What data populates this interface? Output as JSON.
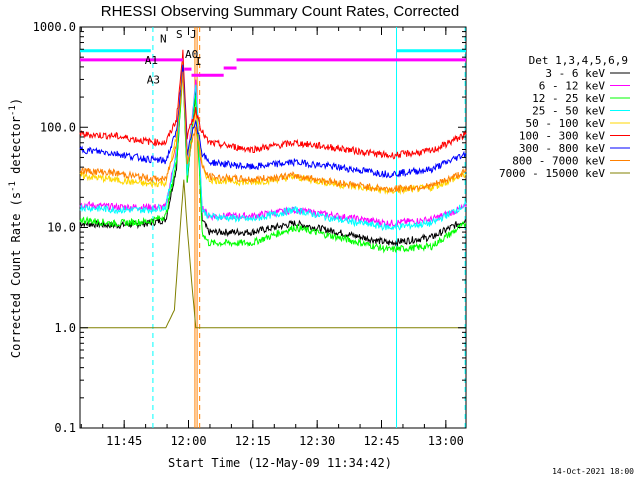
{
  "chart_data": {
    "type": "line",
    "title": "RHESSI Observing Summary Count Rates, Corrected",
    "xlabel": "Start Time (12-May-09 11:34:42)",
    "ylabel_parts": {
      "pre": "Corrected Count Rate (s",
      "sup1": "-1",
      "mid": " detector",
      "sup2": "-1",
      "post": ")"
    },
    "y_scale": "log",
    "ylim": [
      0.1,
      1000.0
    ],
    "xlim_minutes_after_start": [
      0,
      90
    ],
    "x_ticks": [
      {
        "label": "11:45",
        "value": 10.3
      },
      {
        "label": "12:00",
        "value": 25.3
      },
      {
        "label": "12:15",
        "value": 40.3
      },
      {
        "label": "12:30",
        "value": 55.3
      },
      {
        "label": "12:45",
        "value": 70.3
      },
      {
        "label": "13:00",
        "value": 85.3
      }
    ],
    "y_ticks": [
      {
        "label": "1000.0",
        "value": 1000
      },
      {
        "label": "100.0",
        "value": 100
      },
      {
        "label": "10.0",
        "value": 10
      },
      {
        "label": "1.0",
        "value": 1
      },
      {
        "label": "0.1",
        "value": 0.1
      }
    ],
    "legend_header": "Det 1,3,4,5,6,9",
    "legend_placement": "right",
    "grid": false,
    "series": [
      {
        "name": "3 - 6 keV",
        "color": "#000000",
        "points": [
          [
            0,
            11
          ],
          [
            8,
            10.5
          ],
          [
            16,
            11
          ],
          [
            20,
            12
          ],
          [
            22.5,
            40
          ],
          [
            24,
            400
          ],
          [
            25,
            30
          ],
          [
            27,
            250
          ],
          [
            28.5,
            12
          ],
          [
            30,
            9
          ],
          [
            40,
            9
          ],
          [
            50,
            11
          ],
          [
            60,
            9
          ],
          [
            72,
            7
          ],
          [
            82,
            8
          ],
          [
            90,
            12
          ]
        ]
      },
      {
        "name": "6 - 12 keV",
        "color": "#ff00ff",
        "points": [
          [
            0,
            17
          ],
          [
            8,
            16
          ],
          [
            16,
            16
          ],
          [
            20,
            16
          ],
          [
            22.5,
            60
          ],
          [
            24,
            500
          ],
          [
            25,
            40
          ],
          [
            27,
            300
          ],
          [
            28.5,
            16
          ],
          [
            30,
            13
          ],
          [
            40,
            13
          ],
          [
            50,
            15
          ],
          [
            60,
            13
          ],
          [
            72,
            11
          ],
          [
            82,
            12
          ],
          [
            90,
            16
          ]
        ]
      },
      {
        "name": "12 - 25 keV",
        "color": "#00ff00",
        "points": [
          [
            0,
            12
          ],
          [
            8,
            11
          ],
          [
            16,
            11.5
          ],
          [
            20,
            13
          ],
          [
            22.5,
            45
          ],
          [
            24,
            350
          ],
          [
            25,
            30
          ],
          [
            27,
            200
          ],
          [
            28.5,
            9
          ],
          [
            30,
            7
          ],
          [
            40,
            7
          ],
          [
            50,
            10
          ],
          [
            60,
            8
          ],
          [
            72,
            6
          ],
          [
            82,
            6.5
          ],
          [
            90,
            11
          ]
        ]
      },
      {
        "name": "25 - 50 keV",
        "color": "#00ffff",
        "points": [
          [
            0,
            16
          ],
          [
            8,
            15
          ],
          [
            16,
            15
          ],
          [
            20,
            16
          ],
          [
            22.5,
            55
          ],
          [
            24,
            450
          ],
          [
            25,
            35
          ],
          [
            27,
            280
          ],
          [
            28.5,
            15
          ],
          [
            30,
            13
          ],
          [
            40,
            12
          ],
          [
            50,
            15
          ],
          [
            60,
            12
          ],
          [
            72,
            10
          ],
          [
            82,
            11
          ],
          [
            90,
            17
          ]
        ]
      },
      {
        "name": "50 - 100 keV",
        "color": "#ffd700",
        "points": [
          [
            0,
            33
          ],
          [
            8,
            30
          ],
          [
            16,
            27
          ],
          [
            20,
            28
          ],
          [
            22.5,
            80
          ],
          [
            24,
            500
          ],
          [
            25,
            50
          ],
          [
            27,
            150
          ],
          [
            28.5,
            40
          ],
          [
            30,
            30
          ],
          [
            40,
            28
          ],
          [
            50,
            32
          ],
          [
            60,
            27
          ],
          [
            72,
            23
          ],
          [
            82,
            25
          ],
          [
            90,
            34
          ]
        ]
      },
      {
        "name": "100 - 300 keV",
        "color": "#ff0000",
        "points": [
          [
            0,
            85
          ],
          [
            8,
            82
          ],
          [
            16,
            72
          ],
          [
            20,
            70
          ],
          [
            22.5,
            120
          ],
          [
            24,
            550
          ],
          [
            25,
            80
          ],
          [
            27,
            150
          ],
          [
            28.5,
            90
          ],
          [
            30,
            70
          ],
          [
            40,
            60
          ],
          [
            50,
            70
          ],
          [
            60,
            62
          ],
          [
            72,
            52
          ],
          [
            82,
            58
          ],
          [
            90,
            85
          ]
        ]
      },
      {
        "name": "300 - 800 keV",
        "color": "#0000ff",
        "points": [
          [
            0,
            60
          ],
          [
            8,
            55
          ],
          [
            16,
            48
          ],
          [
            20,
            46
          ],
          [
            22.5,
            90
          ],
          [
            24,
            400
          ],
          [
            25,
            55
          ],
          [
            27,
            120
          ],
          [
            28.5,
            55
          ],
          [
            30,
            45
          ],
          [
            40,
            40
          ],
          [
            50,
            45
          ],
          [
            60,
            40
          ],
          [
            72,
            34
          ],
          [
            82,
            38
          ],
          [
            90,
            55
          ]
        ]
      },
      {
        "name": "800 - 7000 keV",
        "color": "#ff8000",
        "points": [
          [
            0,
            37
          ],
          [
            8,
            35
          ],
          [
            16,
            31
          ],
          [
            20,
            30
          ],
          [
            22.5,
            70
          ],
          [
            24,
            350
          ],
          [
            25,
            45
          ],
          [
            27,
            100
          ],
          [
            28.5,
            40
          ],
          [
            30,
            32
          ],
          [
            40,
            30
          ],
          [
            50,
            33
          ],
          [
            60,
            28
          ],
          [
            72,
            24
          ],
          [
            82,
            26
          ],
          [
            90,
            36
          ]
        ]
      },
      {
        "name": "7000 - 15000 keV",
        "color": "#808000",
        "points": [
          [
            0,
            1
          ],
          [
            12,
            1
          ],
          [
            20,
            1
          ],
          [
            22,
            1.5
          ],
          [
            23.2,
            8
          ],
          [
            24.2,
            30
          ],
          [
            25,
            10
          ],
          [
            26,
            3
          ],
          [
            27,
            1
          ],
          [
            28,
            1
          ],
          [
            32,
            1
          ],
          [
            90,
            1
          ]
        ]
      }
    ],
    "vertical_markers": [
      {
        "x": 17.0,
        "color": "#00ffff",
        "style": "dashed"
      },
      {
        "x": 73.8,
        "color": "#00ffff",
        "style": "solid"
      },
      {
        "x": 89.8,
        "color": "#00ffff",
        "style": "dashed"
      },
      {
        "x": 26.8,
        "color": "#ff8000",
        "style": "solid"
      },
      {
        "x": 27.3,
        "color": "#ff8000",
        "style": "solid"
      },
      {
        "x": 27.9,
        "color": "#ff8000",
        "style": "dashed"
      }
    ],
    "state_bars": [
      {
        "label": "N",
        "color": "#00ffff",
        "segments": [
          [
            0,
            16.5
          ],
          [
            73.8,
            90
          ]
        ],
        "level": 580
      },
      {
        "label": "A0",
        "color": "#ff00ff",
        "segments": [
          [
            0,
            24
          ],
          [
            36.5,
            90
          ]
        ],
        "level": 470
      },
      {
        "label": "A1",
        "color": "#ff00ff",
        "segments": [
          [
            24.3,
            26
          ]
        ],
        "level": 380
      },
      {
        "label": "A3",
        "color": "#ff00ff",
        "segments": [
          [
            26,
            33.5
          ]
        ],
        "level": 330
      },
      {
        "label": "",
        "color": "#ff00ff",
        "segments": [
          [
            33.5,
            36.5
          ]
        ],
        "level": 390
      },
      {
        "label": "S",
        "color": "#ff8000",
        "segments": [],
        "level": 780
      },
      {
        "label": "J",
        "color": "#ff8000",
        "segments": [],
        "level": 780
      },
      {
        "label": "I",
        "color": "#ff8000",
        "segments": [],
        "level": 420
      }
    ]
  },
  "footer": {
    "timestamp": "14-Oct-2021 18:00"
  }
}
